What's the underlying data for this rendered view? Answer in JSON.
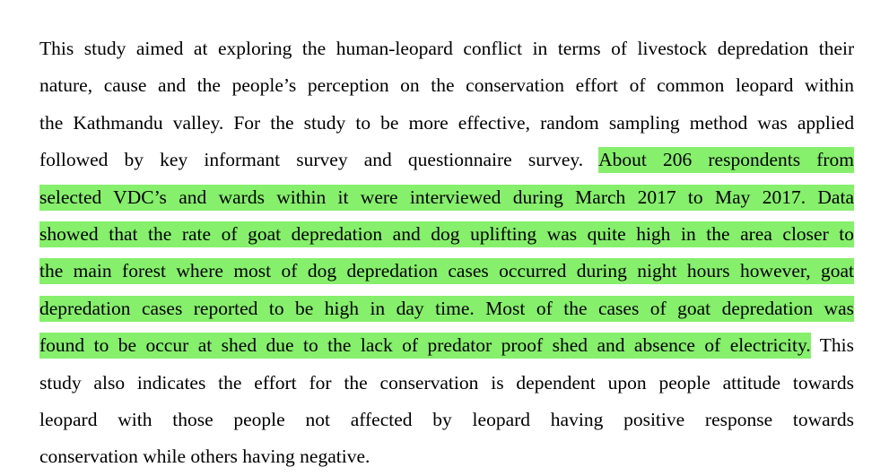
{
  "document": {
    "paragraph_lines": [
      "This study aimed at exploring the human-leopard conflict in terms of livestock depredation their",
      "nature, cause and the people’s perception on the conservation effort of common leopard within",
      "the Kathmandu valley. For the study to be more effective, random sampling method was applied",
      "followed by key informant survey and questionnaire survey.",
      "About 206 respondents from",
      "selected VDC’s and wards within it were interviewed during March 2017 to May 2017. Data",
      "showed that the rate of goat depredation and dog uplifting was quite high in the area closer to",
      "the main forest where most of dog depredation cases occurred during night hours however, goat",
      "depredation cases reported to be high in day time. Most of the cases of goat depredation was",
      "found to be occur at shed due to the lack of predator proof shed and absence of electricity.",
      "This",
      "study also indicates the effort for the conservation is dependent upon people attitude towards",
      "leopard with those people not affected by leopard having positive response towards",
      "conservation while others having negative."
    ],
    "highlight_color": "#86ef6c",
    "text_color": "#000000"
  }
}
